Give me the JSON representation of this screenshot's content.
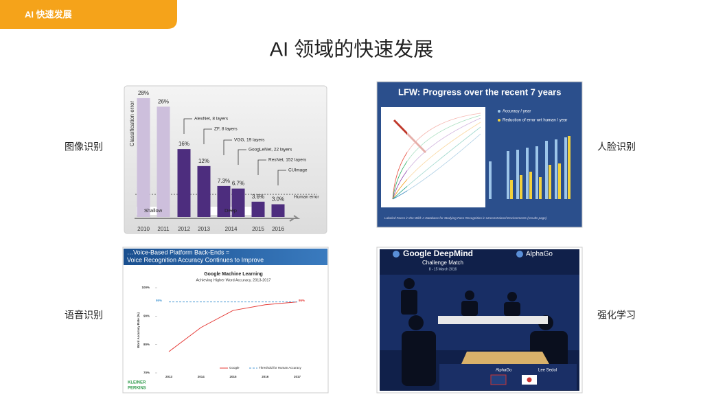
{
  "header": {
    "tab": "AI 快速发展",
    "title": "AI 领域的快速发展"
  },
  "panels": [
    {
      "label": "图像识别",
      "chart": {
        "type": "bar",
        "ylabel": "Classification error",
        "categories": [
          "2010",
          "2011",
          "2012",
          "2013",
          "2014",
          null,
          "2015",
          "2016"
        ],
        "values": [
          28,
          26,
          16,
          12,
          7.3,
          6.7,
          3.6,
          3.0
        ],
        "value_labels": [
          "28%",
          "26%",
          "16%",
          "12%",
          "7.3%",
          "6.7%",
          "3.6%",
          "3.0%"
        ],
        "colors": [
          "#cdbfdc",
          "#cdbfdc",
          "#4d2d7e",
          "#4d2d7e",
          "#4d2d7e",
          "#4d2d7e",
          "#4d2d7e",
          "#4d2d7e"
        ],
        "annotations": [
          "AlexNet, 8 layers",
          "ZF, 8 layers",
          "VGG, 19 layers",
          "GoogLeNet, 22 layers",
          "ResNet, 152 layers",
          "CUImage"
        ],
        "groups": [
          "Shallow",
          "Deep"
        ],
        "reference": "Human error"
      }
    },
    {
      "label": "人脸识别",
      "image": {
        "title": "LFW: Progress over the recent 7 years",
        "legend": [
          "Accuracy / year",
          "Reduction of error wrt human / year"
        ],
        "caption": "Labeled Faces in the Wild: A Database for Studying Face Recognition in Unconstrained Environments (results page)"
      }
    },
    {
      "label": "语音识别",
      "banner": [
        "…Voice-Based Platform Back-Ends =",
        "Voice Recognition Accuracy Continues to Improve"
      ],
      "chart": {
        "type": "line",
        "title": "Google Machine Learning",
        "subtitle": "Achieving Higher Word Accuracy, 2013-2017",
        "ylabel": "Word Accuracy Rate (%)",
        "x": [
          2013,
          2014,
          2015,
          2016,
          2017
        ],
        "xlim": [
          2013,
          2017
        ],
        "xticks": [
          2013,
          2014,
          2015,
          2016,
          2017
        ],
        "ylim": [
          70,
          100
        ],
        "yticks": [
          {
            "value": 70,
            "label": "70%"
          },
          {
            "value": 80,
            "label": "80%"
          },
          {
            "value": 90,
            "label": "90%"
          },
          {
            "value": 100,
            "label": "100%"
          }
        ],
        "series": [
          {
            "name": "Google",
            "color": "#e53935",
            "dash": false,
            "values": [
              77.5,
              86,
              92,
              94,
              95
            ],
            "value_labels": [
              null,
              null,
              null,
              null,
              "95%"
            ]
          },
          {
            "name": "Threshold for Human Accuracy",
            "color": "#4a9ad4",
            "dash": true,
            "values": [
              95,
              95,
              95,
              95,
              95
            ],
            "value_labels": [
              "95%",
              null,
              null,
              null,
              null
            ]
          }
        ]
      },
      "brand": [
        "KLEINER",
        "PERKINS"
      ]
    },
    {
      "label": "强化学习",
      "image": {
        "title": "Google DeepMind",
        "subtitle": "Challenge Match",
        "date": "8 - 15 March 2016",
        "logo": "AlphaGo",
        "players": [
          "AlphaGo",
          "Lee Sedol"
        ]
      }
    }
  ]
}
